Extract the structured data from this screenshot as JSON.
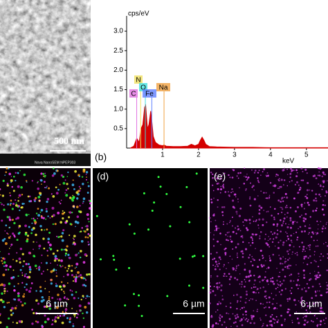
{
  "panels": {
    "sem": {
      "scale": "500 nm",
      "info": "Nova NanoSEM NPEP303"
    },
    "spectrum_label": "(b)",
    "map_c": {
      "scale": "6 µm"
    },
    "map_d": {
      "label": "(d)",
      "scale": "6 µm"
    },
    "map_e": {
      "label": "(e)",
      "scale": "6 µm"
    }
  },
  "chart_data": {
    "type": "area",
    "ylabel": "cps/eV",
    "xlabel": "keV",
    "x": [
      0.1,
      0.2,
      0.28,
      0.35,
      0.4,
      0.45,
      0.5,
      0.53,
      0.58,
      0.62,
      0.67,
      0.7,
      0.74,
      0.8,
      0.9,
      1.0,
      1.04,
      1.1,
      1.3,
      1.5,
      1.7,
      1.8,
      1.9,
      2.0,
      2.05,
      2.1,
      2.15,
      2.2,
      2.3,
      2.5,
      3.0,
      3.5,
      4.0,
      4.5,
      5.0,
      5.6
    ],
    "values": [
      0,
      0.05,
      0.25,
      0.15,
      0.5,
      0.6,
      1.05,
      1.1,
      0.5,
      0.6,
      0.95,
      0.7,
      0.3,
      0.15,
      0.08,
      0.06,
      0.08,
      0.05,
      0.04,
      0.04,
      0.05,
      0.1,
      0.06,
      0.1,
      0.2,
      0.28,
      0.2,
      0.1,
      0.04,
      0.03,
      0.02,
      0.02,
      0.01,
      0.01,
      0.01,
      0.01
    ],
    "color": "#d40000",
    "xlim": [
      0,
      5.6
    ],
    "ylim": [
      0,
      3.25
    ],
    "xticks": [
      1,
      2,
      3,
      4,
      5
    ],
    "yticks": [
      0.5,
      {
        "value": 1,
        "label": "1.0"
      },
      1.5,
      {
        "value": 2,
        "label": "2.0"
      },
      2.5,
      {
        "value": 3,
        "label": "3.0"
      }
    ],
    "annotations": [
      {
        "text": "N",
        "x": 0.39,
        "color": "#f0e060"
      },
      {
        "text": "O",
        "x": 0.52,
        "color": "#40e0e0"
      },
      {
        "text": "C",
        "x": 0.28,
        "color": "#e070e0"
      },
      {
        "text": "Fe",
        "x": 0.7,
        "color": "#6080ff"
      },
      {
        "text": "Na",
        "x": 1.04,
        "color": "#f0a040"
      }
    ]
  }
}
